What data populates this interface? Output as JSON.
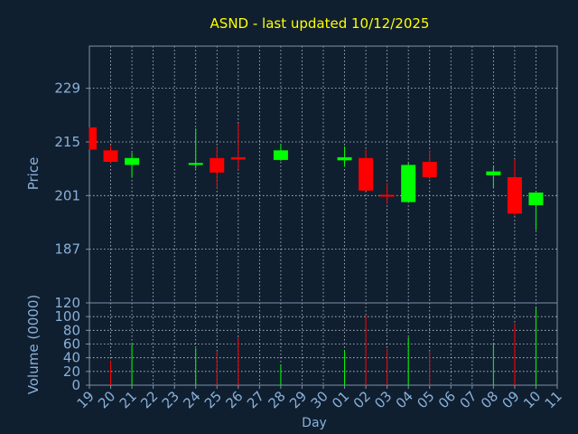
{
  "title": "ASND - last updated 10/12/2025",
  "colors": {
    "background": "#0f1f30",
    "title": "#ffff00",
    "axis_text": "#8ab0d8",
    "frame": "#8090a8",
    "grid": "#c8ccd4",
    "up": "#00ff00",
    "down": "#ff0000"
  },
  "chart_data": [
    {
      "type": "candlestick",
      "ylabel": "Price",
      "ylim": [
        173,
        240
      ],
      "yticks": [
        187,
        201,
        215,
        229
      ],
      "x": [
        "19",
        "20",
        "21",
        "22",
        "23",
        "24",
        "25",
        "26",
        "27",
        "28",
        "29",
        "30",
        "01",
        "02",
        "03",
        "04",
        "05",
        "06",
        "07",
        "08",
        "09",
        "10",
        "11"
      ],
      "candles": [
        {
          "day": "19",
          "open": 218.8,
          "close": 213.0,
          "high": 218.8,
          "low": 213.0
        },
        {
          "day": "20",
          "open": 212.8,
          "close": 209.8,
          "high": 214.0,
          "low": 209.5
        },
        {
          "day": "21",
          "open": 209.0,
          "close": 210.8,
          "high": 212.2,
          "low": 205.8
        },
        {
          "day": "24",
          "open": 209.0,
          "close": 209.5,
          "high": 218.5,
          "low": 208.0
        },
        {
          "day": "25",
          "open": 210.8,
          "close": 207.0,
          "high": 213.8,
          "low": 203.0
        },
        {
          "day": "26",
          "open": 211.0,
          "close": 210.4,
          "high": 219.8,
          "low": 207.8
        },
        {
          "day": "28",
          "open": 210.3,
          "close": 212.8,
          "high": 214.5,
          "low": 210.0
        },
        {
          "day": "01",
          "open": 210.2,
          "close": 211.0,
          "high": 213.8,
          "low": 208.5
        },
        {
          "day": "02",
          "open": 210.8,
          "close": 202.3,
          "high": 213.0,
          "low": 202.3
        },
        {
          "day": "03",
          "open": 201.2,
          "close": 200.8,
          "high": 204.3,
          "low": 198.8
        },
        {
          "day": "04",
          "open": 199.3,
          "close": 209.0,
          "high": 209.5,
          "low": 199.3
        },
        {
          "day": "05",
          "open": 209.8,
          "close": 205.8,
          "high": 212.8,
          "low": 205.3
        },
        {
          "day": "08",
          "open": 206.3,
          "close": 207.3,
          "high": 208.5,
          "low": 203.0
        },
        {
          "day": "09",
          "open": 205.8,
          "close": 196.3,
          "high": 210.5,
          "low": 195.8
        },
        {
          "day": "10",
          "open": 198.5,
          "close": 201.8,
          "high": 201.8,
          "low": 192.0
        }
      ]
    },
    {
      "type": "bar",
      "xlabel": "Day",
      "ylabel": "Volume (0000)",
      "ylim": [
        0,
        120
      ],
      "yticks": [
        0,
        20,
        40,
        60,
        80,
        100,
        120
      ],
      "categories": [
        "19",
        "20",
        "21",
        "22",
        "23",
        "24",
        "25",
        "26",
        "27",
        "28",
        "29",
        "30",
        "01",
        "02",
        "03",
        "04",
        "05",
        "06",
        "07",
        "08",
        "09",
        "10",
        "11"
      ],
      "bars": [
        {
          "day": "20",
          "value": 36,
          "direction": "down"
        },
        {
          "day": "21",
          "value": 61,
          "direction": "up"
        },
        {
          "day": "24",
          "value": 54,
          "direction": "up"
        },
        {
          "day": "25",
          "value": 50,
          "direction": "down"
        },
        {
          "day": "26",
          "value": 70,
          "direction": "down"
        },
        {
          "day": "28",
          "value": 30,
          "direction": "up"
        },
        {
          "day": "01",
          "value": 51,
          "direction": "up"
        },
        {
          "day": "02",
          "value": 101,
          "direction": "down"
        },
        {
          "day": "03",
          "value": 53,
          "direction": "down"
        },
        {
          "day": "04",
          "value": 70,
          "direction": "up"
        },
        {
          "day": "05",
          "value": 50,
          "direction": "down"
        },
        {
          "day": "08",
          "value": 61,
          "direction": "up"
        },
        {
          "day": "09",
          "value": 90,
          "direction": "down"
        },
        {
          "day": "10",
          "value": 113,
          "direction": "up"
        }
      ]
    }
  ]
}
